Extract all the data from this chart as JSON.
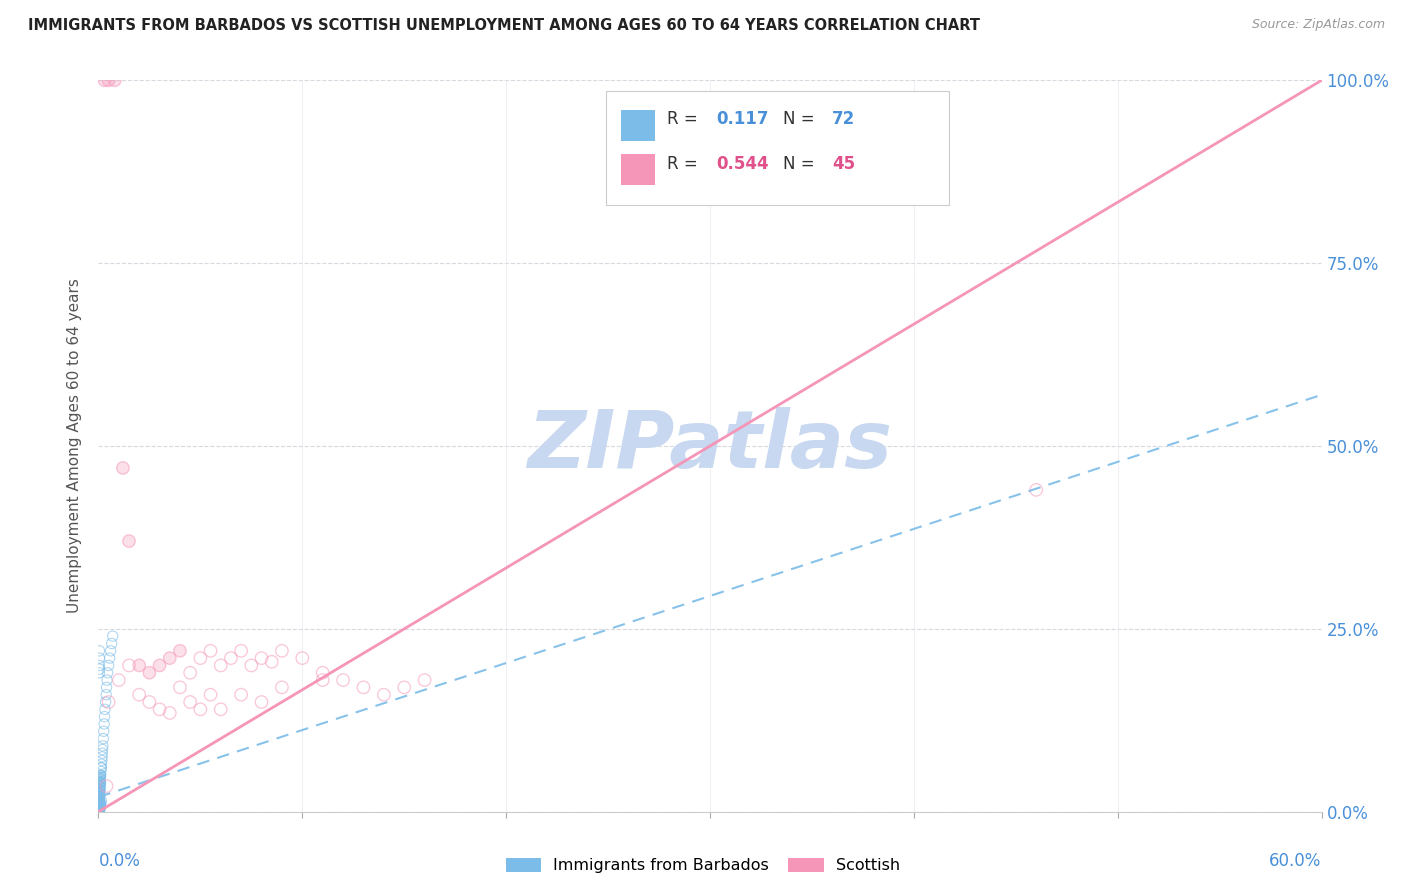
{
  "title": "IMMIGRANTS FROM BARBADOS VS SCOTTISH UNEMPLOYMENT AMONG AGES 60 TO 64 YEARS CORRELATION CHART",
  "source": "Source: ZipAtlas.com",
  "xlabel_bottom_left": "0.0%",
  "xlabel_bottom_right": "60.0%",
  "ylabel": "Unemployment Among Ages 60 to 64 years",
  "yticks": [
    "0.0%",
    "25.0%",
    "50.0%",
    "75.0%",
    "100.0%"
  ],
  "ytick_vals": [
    0,
    25,
    50,
    75,
    100
  ],
  "xtick_vals": [
    0,
    10,
    20,
    30,
    40,
    50,
    60
  ],
  "legend_blue_r": "0.117",
  "legend_blue_n": "72",
  "legend_pink_r": "0.544",
  "legend_pink_n": "45",
  "legend_label_blue": "Immigrants from Barbados",
  "legend_label_pink": "Scottish",
  "blue_color": "#7bbce8",
  "pink_color": "#f595b8",
  "watermark_text": "ZIPatlas",
  "watermark_color": "#c8d8f0",
  "background_color": "#ffffff",
  "grid_color": "#d8d8e0",
  "blue_scatter_x": [
    0.05,
    0.05,
    0.05,
    0.05,
    0.05,
    0.05,
    0.05,
    0.05,
    0.06,
    0.06,
    0.07,
    0.07,
    0.08,
    0.08,
    0.09,
    0.09,
    0.1,
    0.1,
    0.1,
    0.11,
    0.12,
    0.13,
    0.14,
    0.15,
    0.17,
    0.18,
    0.19,
    0.2,
    0.22,
    0.24,
    0.26,
    0.28,
    0.3,
    0.32,
    0.35,
    0.38,
    0.4,
    0.42,
    0.45,
    0.5,
    0.55,
    0.6,
    0.65,
    0.7,
    0.05,
    0.05,
    0.05,
    0.05,
    0.05,
    0.06,
    0.06,
    0.07,
    0.07,
    0.08,
    0.09,
    0.1,
    0.12,
    0.14,
    0.05,
    0.05,
    0.05,
    0.05,
    0.05,
    0.05,
    0.05,
    0.05,
    0.05,
    0.05,
    0.05,
    0.06,
    0.07,
    0.08
  ],
  "blue_scatter_y": [
    0.5,
    0.5,
    0.5,
    1.0,
    1.0,
    1.0,
    1.5,
    2.0,
    2.0,
    2.5,
    2.5,
    3.0,
    3.0,
    3.5,
    3.5,
    4.0,
    4.0,
    4.5,
    5.0,
    5.0,
    5.5,
    6.0,
    6.0,
    6.5,
    7.0,
    7.5,
    8.0,
    8.5,
    9.0,
    10.0,
    11.0,
    12.0,
    13.0,
    14.0,
    15.0,
    16.0,
    17.0,
    18.0,
    19.0,
    20.0,
    21.0,
    22.0,
    23.0,
    24.0,
    0.2,
    0.3,
    0.4,
    0.2,
    0.3,
    0.4,
    0.5,
    0.5,
    0.6,
    0.7,
    0.8,
    1.0,
    1.2,
    1.5,
    19.0,
    22.0,
    21.0,
    20.0,
    19.5,
    0.2,
    0.3,
    0.4,
    0.5,
    0.6,
    0.7,
    0.8,
    1.0,
    1.2
  ],
  "pink_scatter_x": [
    0.3,
    0.5,
    0.8,
    1.2,
    1.5,
    2.0,
    2.5,
    3.0,
    3.5,
    4.0,
    4.5,
    5.0,
    5.5,
    6.0,
    6.5,
    7.0,
    7.5,
    8.0,
    8.5,
    9.0,
    10.0,
    11.0,
    12.0,
    13.0,
    14.0,
    15.0,
    16.0,
    0.5,
    1.0,
    1.5,
    2.0,
    2.5,
    3.0,
    3.5,
    4.0,
    4.5,
    5.0,
    5.5,
    6.0,
    7.0,
    8.0,
    9.0,
    11.0,
    46.0,
    0.4
  ],
  "pink_scatter_y": [
    100.0,
    100.0,
    100.0,
    47.0,
    37.0,
    20.0,
    19.0,
    20.0,
    21.0,
    22.0,
    19.0,
    21.0,
    22.0,
    20.0,
    21.0,
    22.0,
    20.0,
    21.0,
    20.5,
    22.0,
    21.0,
    19.0,
    18.0,
    17.0,
    16.0,
    17.0,
    18.0,
    15.0,
    18.0,
    20.0,
    16.0,
    15.0,
    14.0,
    13.5,
    17.0,
    15.0,
    14.0,
    16.0,
    14.0,
    16.0,
    15.0,
    17.0,
    18.0,
    44.0,
    3.5
  ],
  "blue_trend_x": [
    0.0,
    60.0
  ],
  "blue_trend_y": [
    2.0,
    57.0
  ],
  "pink_trend_x": [
    0.0,
    60.0
  ],
  "pink_trend_y": [
    0.0,
    100.0
  ]
}
